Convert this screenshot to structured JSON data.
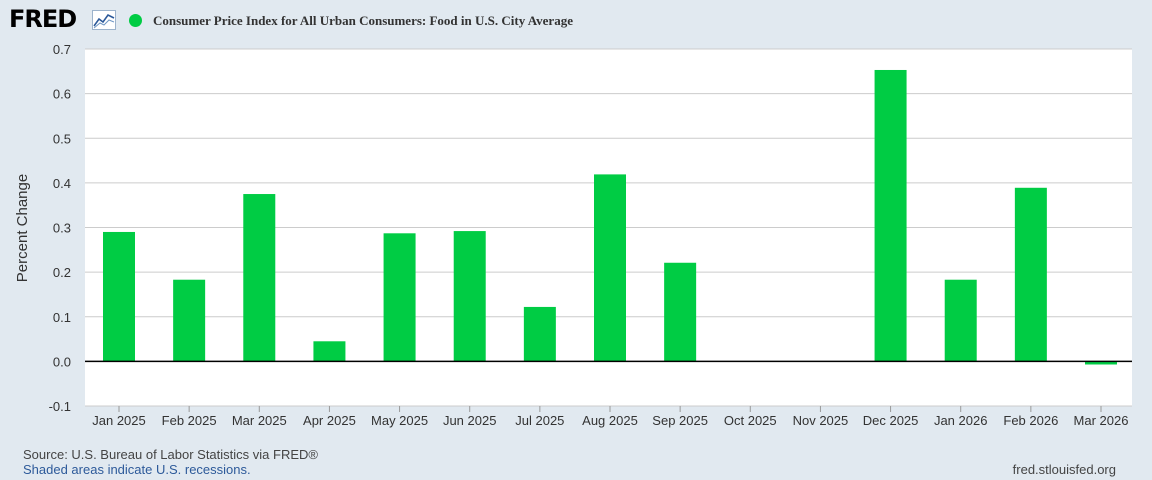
{
  "header": {
    "logo_text": "FRED",
    "logo_icon": "line-chart-icon",
    "series_title": "Consumer Price Index for All Urban Consumers: Food in U.S. City Average",
    "series_color": "#00cc44"
  },
  "footer": {
    "source": "Source: U.S. Bureau of Labor Statistics via FRED®",
    "recessions": "Shaded areas indicate U.S. recessions.",
    "url": "fred.stlouisfed.org"
  },
  "chart_data": {
    "type": "bar",
    "title": "Consumer Price Index for All Urban Consumers: Food in U.S. City Average",
    "xlabel": "",
    "ylabel": "Percent Change",
    "ylim": [
      -0.1,
      0.7
    ],
    "yticks": [
      "0.7",
      "0.6",
      "0.5",
      "0.4",
      "0.3",
      "0.2",
      "0.1",
      "0.0",
      "-0.1"
    ],
    "grid": true,
    "legend": "top-left",
    "categories": [
      "Jan 2025",
      "Feb 2025",
      "Mar 2025",
      "Apr 2025",
      "May 2025",
      "Jun 2025",
      "Jul 2025",
      "Aug 2025",
      "Sep 2025",
      "Oct 2025",
      "Nov 2025",
      "Dec 2025",
      "Jan 2026",
      "Feb 2026",
      "Mar 2026"
    ],
    "series": [
      {
        "name": "Consumer Price Index for All Urban Consumers: Food in U.S. City Average",
        "color": "#00cc44",
        "values": [
          0.29,
          0.183,
          0.375,
          0.045,
          0.287,
          0.292,
          0.122,
          0.419,
          0.221,
          null,
          null,
          0.653,
          0.183,
          0.389,
          -0.007
        ]
      }
    ]
  }
}
